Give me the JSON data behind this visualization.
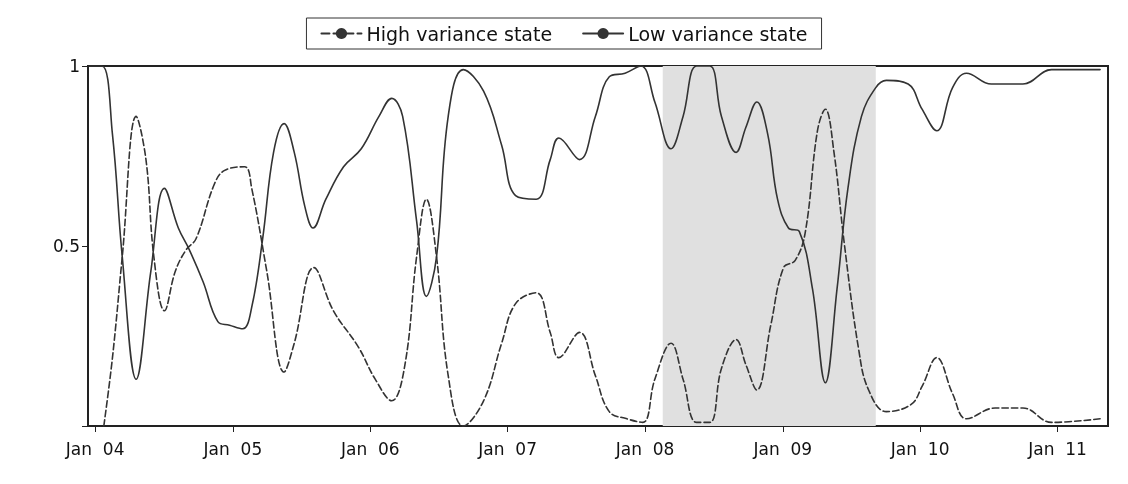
{
  "chart_data": {
    "type": "line",
    "xlim": [
      "2003-12-13",
      "2011-05-15"
    ],
    "xticks": [
      {
        "value": "2004-01-01",
        "label": "Jan  04"
      },
      {
        "value": "2005-01-01",
        "label": "Jan  05"
      },
      {
        "value": "2006-01-01",
        "label": "Jan  06"
      },
      {
        "value": "2007-01-01",
        "label": "Jan  07"
      },
      {
        "value": "2008-01-01",
        "label": "Jan  08"
      },
      {
        "value": "2009-01-01",
        "label": "Jan  09"
      },
      {
        "value": "2010-01-01",
        "label": "Jan  10"
      },
      {
        "value": "2011-01-01",
        "label": "Jan  11"
      }
    ],
    "ylim": [
      0,
      1
    ],
    "yticks": [
      {
        "value": 0,
        "label": null
      },
      0.5,
      1
    ],
    "grid": false,
    "legend": "top",
    "marker": "none",
    "bands": [
      {
        "axis": "x",
        "from": "2008-02-17",
        "to": "2009-09-05",
        "color": "#e0e0e0"
      }
    ],
    "series": [
      {
        "name": "High variance state",
        "color": "#333333",
        "line_style": "dashed",
        "x": [
          "2004-01-24",
          "2004-02-16",
          "2004-03-13",
          "2004-04-19",
          "2004-05-15",
          "2004-06-05",
          "2004-07-03",
          "2004-08-01",
          "2004-08-30",
          "2004-09-25",
          "2004-11-12",
          "2004-12-10",
          "2005-02-01",
          "2005-02-20",
          "2005-04-01",
          "2005-05-17",
          "2005-06-13",
          "2005-08-04",
          "2005-09-25",
          "2005-11-30",
          "2006-01-14",
          "2006-02-27",
          "2006-04-03",
          "2006-05-04",
          "2006-05-30",
          "2006-06-26",
          "2006-07-27",
          "2006-09-05",
          "2006-10-29",
          "2006-12-16",
          "2007-01-22",
          "2007-03-18",
          "2007-04-24",
          "2007-05-17",
          "2007-07-11",
          "2007-08-22",
          "2007-09-28",
          "2007-11-14",
          "2007-12-26",
          "2008-01-27",
          "2008-03-10",
          "2008-04-11",
          "2008-05-17",
          "2008-06-21",
          "2008-07-22",
          "2008-08-30",
          "2008-09-25",
          "2008-10-24",
          "2008-11-30",
          "2009-01-03",
          "2009-02-03",
          "2009-03-02",
          "2009-04-03",
          "2009-04-24",
          "2009-05-17",
          "2009-06-13",
          "2009-07-22",
          "2009-08-17",
          "2009-10-03",
          "2009-12-08",
          "2010-01-06",
          "2010-02-14",
          "2010-03-28",
          "2010-05-04",
          "2010-07-19",
          "2010-10-01",
          "2010-12-16",
          "2011-04-24"
        ],
        "values": [
          0.0,
          0.19,
          0.47,
          0.86,
          0.74,
          0.47,
          0.32,
          0.43,
          0.49,
          0.52,
          0.67,
          0.71,
          0.72,
          0.66,
          0.43,
          0.15,
          0.23,
          0.44,
          0.32,
          0.22,
          0.13,
          0.07,
          0.17,
          0.47,
          0.63,
          0.47,
          0.14,
          0.0,
          0.07,
          0.23,
          0.34,
          0.37,
          0.26,
          0.19,
          0.26,
          0.14,
          0.04,
          0.02,
          0.01,
          0.13,
          0.23,
          0.13,
          0.01,
          0.01,
          0.16,
          0.24,
          0.17,
          0.1,
          0.28,
          0.44,
          0.46,
          0.54,
          0.82,
          0.88,
          0.76,
          0.51,
          0.21,
          0.1,
          0.04,
          0.06,
          0.11,
          0.19,
          0.09,
          0.02,
          0.05,
          0.05,
          0.01,
          0.02
        ]
      },
      {
        "name": "Low variance state",
        "color": "#333333",
        "line_style": "solid",
        "x": [
          "2003-12-16",
          "2004-01-19",
          "2004-02-16",
          "2004-03-13",
          "2004-04-19",
          "2004-05-28",
          "2004-07-03",
          "2004-08-09",
          "2004-09-07",
          "2004-10-14",
          "2004-11-22",
          "2004-12-23",
          "2005-01-27",
          "2005-02-20",
          "2005-03-21",
          "2005-04-19",
          "2005-05-17",
          "2005-06-13",
          "2005-07-11",
          "2005-08-02",
          "2005-09-05",
          "2005-10-22",
          "2005-12-08",
          "2006-01-24",
          "2006-02-27",
          "2006-03-28",
          "2006-05-04",
          "2006-05-30",
          "2006-06-26",
          "2006-07-27",
          "2006-09-05",
          "2006-10-29",
          "2006-12-16",
          "2007-01-22",
          "2007-03-18",
          "2007-04-24",
          "2007-05-17",
          "2007-07-11",
          "2007-08-22",
          "2007-09-28",
          "2007-11-09",
          "2007-12-21",
          "2008-01-27",
          "2008-03-10",
          "2008-04-11",
          "2008-05-17",
          "2008-06-21",
          "2008-07-22",
          "2008-08-30",
          "2008-09-25",
          "2008-10-24",
          "2008-11-22",
          "2008-12-18",
          "2009-01-16",
          "2009-02-14",
          "2009-03-21",
          "2009-04-24",
          "2009-05-25",
          "2009-06-23",
          "2009-07-29",
          "2009-09-05",
          "2009-10-03",
          "2009-11-30",
          "2010-01-06",
          "2010-02-14",
          "2010-03-28",
          "2010-05-04",
          "2010-07-09",
          "2010-10-01",
          "2010-12-16",
          "2011-04-24"
        ],
        "values": [
          1.0,
          1.0,
          0.81,
          0.47,
          0.13,
          0.43,
          0.66,
          0.55,
          0.49,
          0.4,
          0.29,
          0.28,
          0.27,
          0.33,
          0.52,
          0.76,
          0.84,
          0.76,
          0.61,
          0.55,
          0.63,
          0.72,
          0.77,
          0.86,
          0.91,
          0.86,
          0.57,
          0.36,
          0.47,
          0.86,
          0.99,
          0.93,
          0.78,
          0.64,
          0.63,
          0.74,
          0.8,
          0.74,
          0.86,
          0.97,
          0.98,
          1.0,
          0.9,
          0.77,
          0.86,
          1.0,
          1.0,
          0.86,
          0.76,
          0.83,
          0.9,
          0.81,
          0.63,
          0.55,
          0.54,
          0.38,
          0.12,
          0.38,
          0.66,
          0.86,
          0.94,
          0.96,
          0.95,
          0.88,
          0.82,
          0.94,
          0.98,
          0.95,
          0.95,
          0.99,
          0.99
        ]
      }
    ]
  }
}
